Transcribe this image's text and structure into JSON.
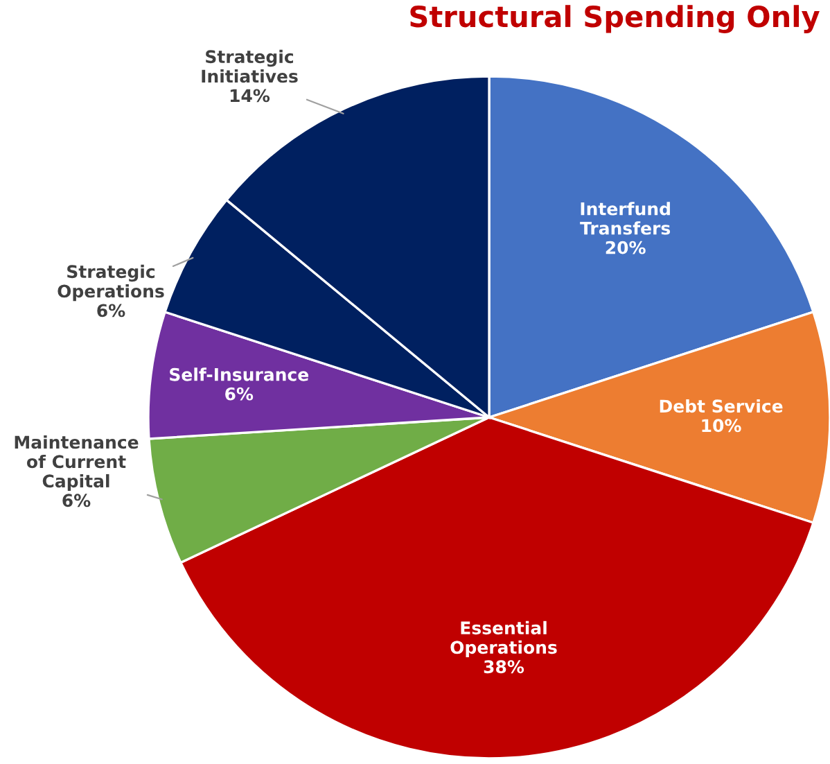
{
  "chart_data": {
    "type": "pie",
    "title": "Structural Spending Only",
    "categories": [
      "Interfund\nTransfers",
      "Debt Service",
      "Essential\nOperations",
      "Maintenance\nof Current\nCapital",
      "Self-Insurance",
      "Strategic\nOperations",
      "Strategic\nInitiatives"
    ],
    "values": [
      20,
      10,
      38,
      6,
      6,
      6,
      14
    ],
    "colors": [
      "#4472c4",
      "#ed7d31",
      "#c00000",
      "#70ad47",
      "#7030a0",
      "#002060",
      "#002060"
    ],
    "value_labels": [
      "20%",
      "10%",
      "38%",
      "6%",
      "6%",
      "6%",
      "14%"
    ],
    "legend": false
  }
}
